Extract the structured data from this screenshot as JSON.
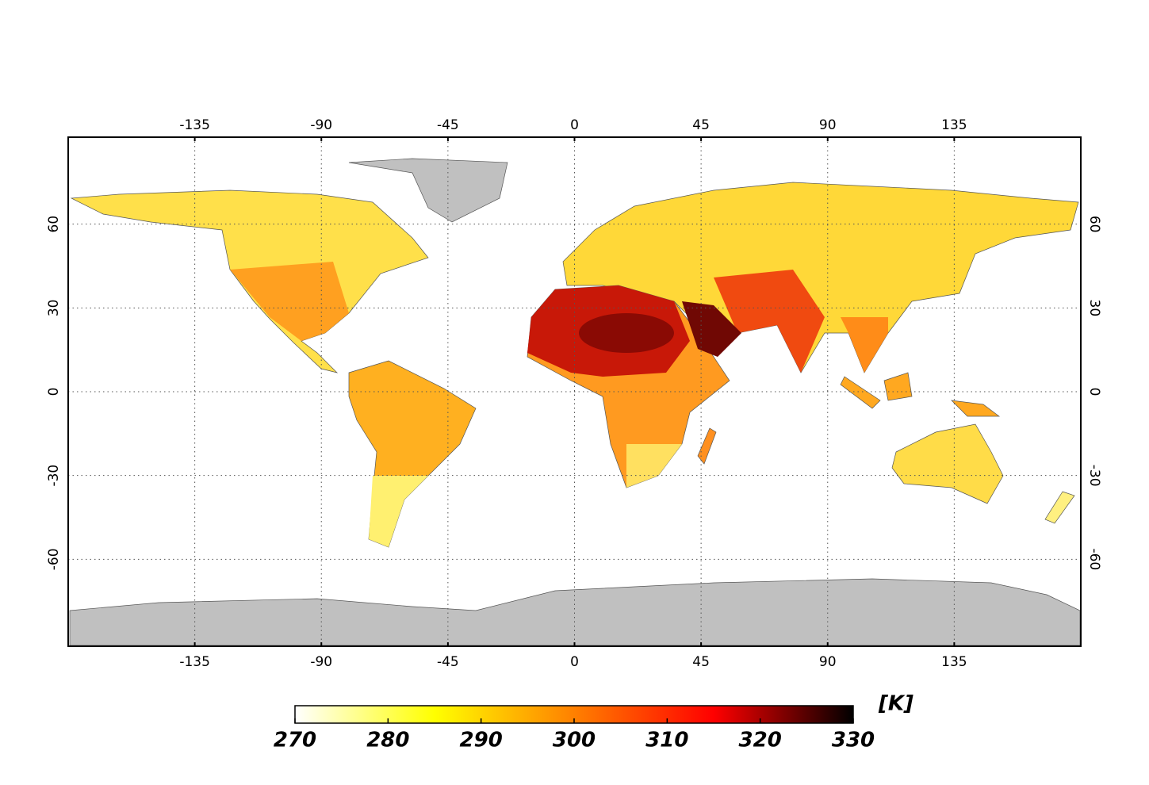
{
  "map": {
    "xlim": [
      -180,
      180
    ],
    "ylim": [
      -90,
      90
    ],
    "xticks": [
      -135,
      -90,
      -45,
      0,
      45,
      90,
      135
    ],
    "yticks": [
      -60,
      -30,
      0,
      30,
      60
    ],
    "colorbar": {
      "lim": [
        270,
        330
      ],
      "ticks": [
        270,
        280,
        290,
        300,
        310,
        320,
        330
      ],
      "unit": "[K]",
      "colors": [
        "#ffffff",
        "#ffff00",
        "#ff8000",
        "#ff0000",
        "#000000"
      ]
    }
  }
}
